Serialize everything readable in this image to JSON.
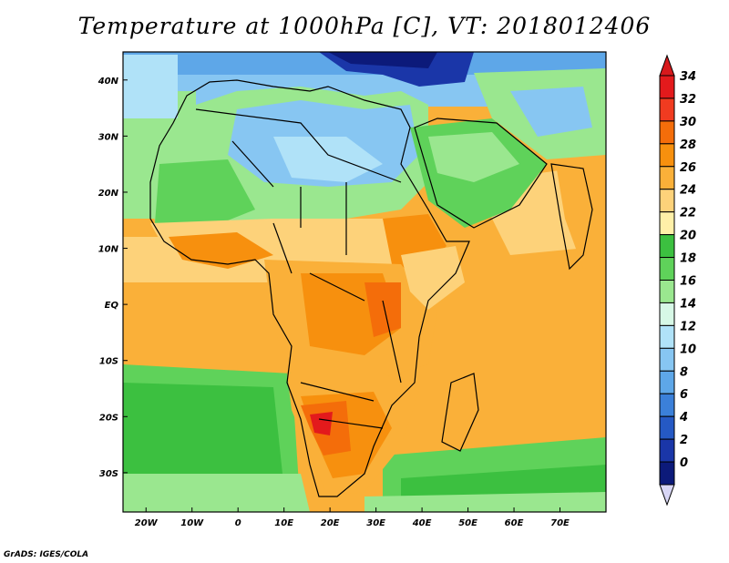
{
  "title": "Temperature at 1000hPa [C], VT: 2018012406",
  "credit": "GrADS: IGES/COLA",
  "map": {
    "region": "Africa",
    "lon_range": [
      -25,
      80
    ],
    "lat_range": [
      -37,
      45
    ],
    "lat_ticks": [
      {
        "value": 40,
        "label": "40N"
      },
      {
        "value": 30,
        "label": "30N"
      },
      {
        "value": 20,
        "label": "20N"
      },
      {
        "value": 10,
        "label": "10N"
      },
      {
        "value": 0,
        "label": "EQ"
      },
      {
        "value": -10,
        "label": "10S"
      },
      {
        "value": -20,
        "label": "20S"
      },
      {
        "value": -30,
        "label": "30S"
      }
    ],
    "lon_ticks": [
      {
        "value": -20,
        "label": "20W"
      },
      {
        "value": -10,
        "label": "10W"
      },
      {
        "value": 0,
        "label": "0"
      },
      {
        "value": 10,
        "label": "10E"
      },
      {
        "value": 20,
        "label": "20E"
      },
      {
        "value": 30,
        "label": "30E"
      },
      {
        "value": 40,
        "label": "40E"
      },
      {
        "value": 50,
        "label": "50E"
      },
      {
        "value": 60,
        "label": "60E"
      },
      {
        "value": 70,
        "label": "70E"
      }
    ]
  },
  "colorbar": {
    "labels": [
      "34",
      "32",
      "30",
      "28",
      "26",
      "24",
      "22",
      "20",
      "18",
      "16",
      "14",
      "12",
      "10",
      "8",
      "6",
      "4",
      "2",
      "0"
    ],
    "colors": [
      "#e31a1c",
      "#f03b20",
      "#f46d0a",
      "#f7900e",
      "#fab039",
      "#fdd27a",
      "#fff0a8",
      "#3cc040",
      "#5fd25a",
      "#9ae78f",
      "#d7f8e6",
      "#b0e2f8",
      "#87c6f2",
      "#5ea7e8",
      "#3b80d9",
      "#2559c4",
      "#1a36a8",
      "#0c1a7a"
    ],
    "top_arrow_color": "#d7191c",
    "bottom_arrow_color": "#d8d6f5"
  }
}
